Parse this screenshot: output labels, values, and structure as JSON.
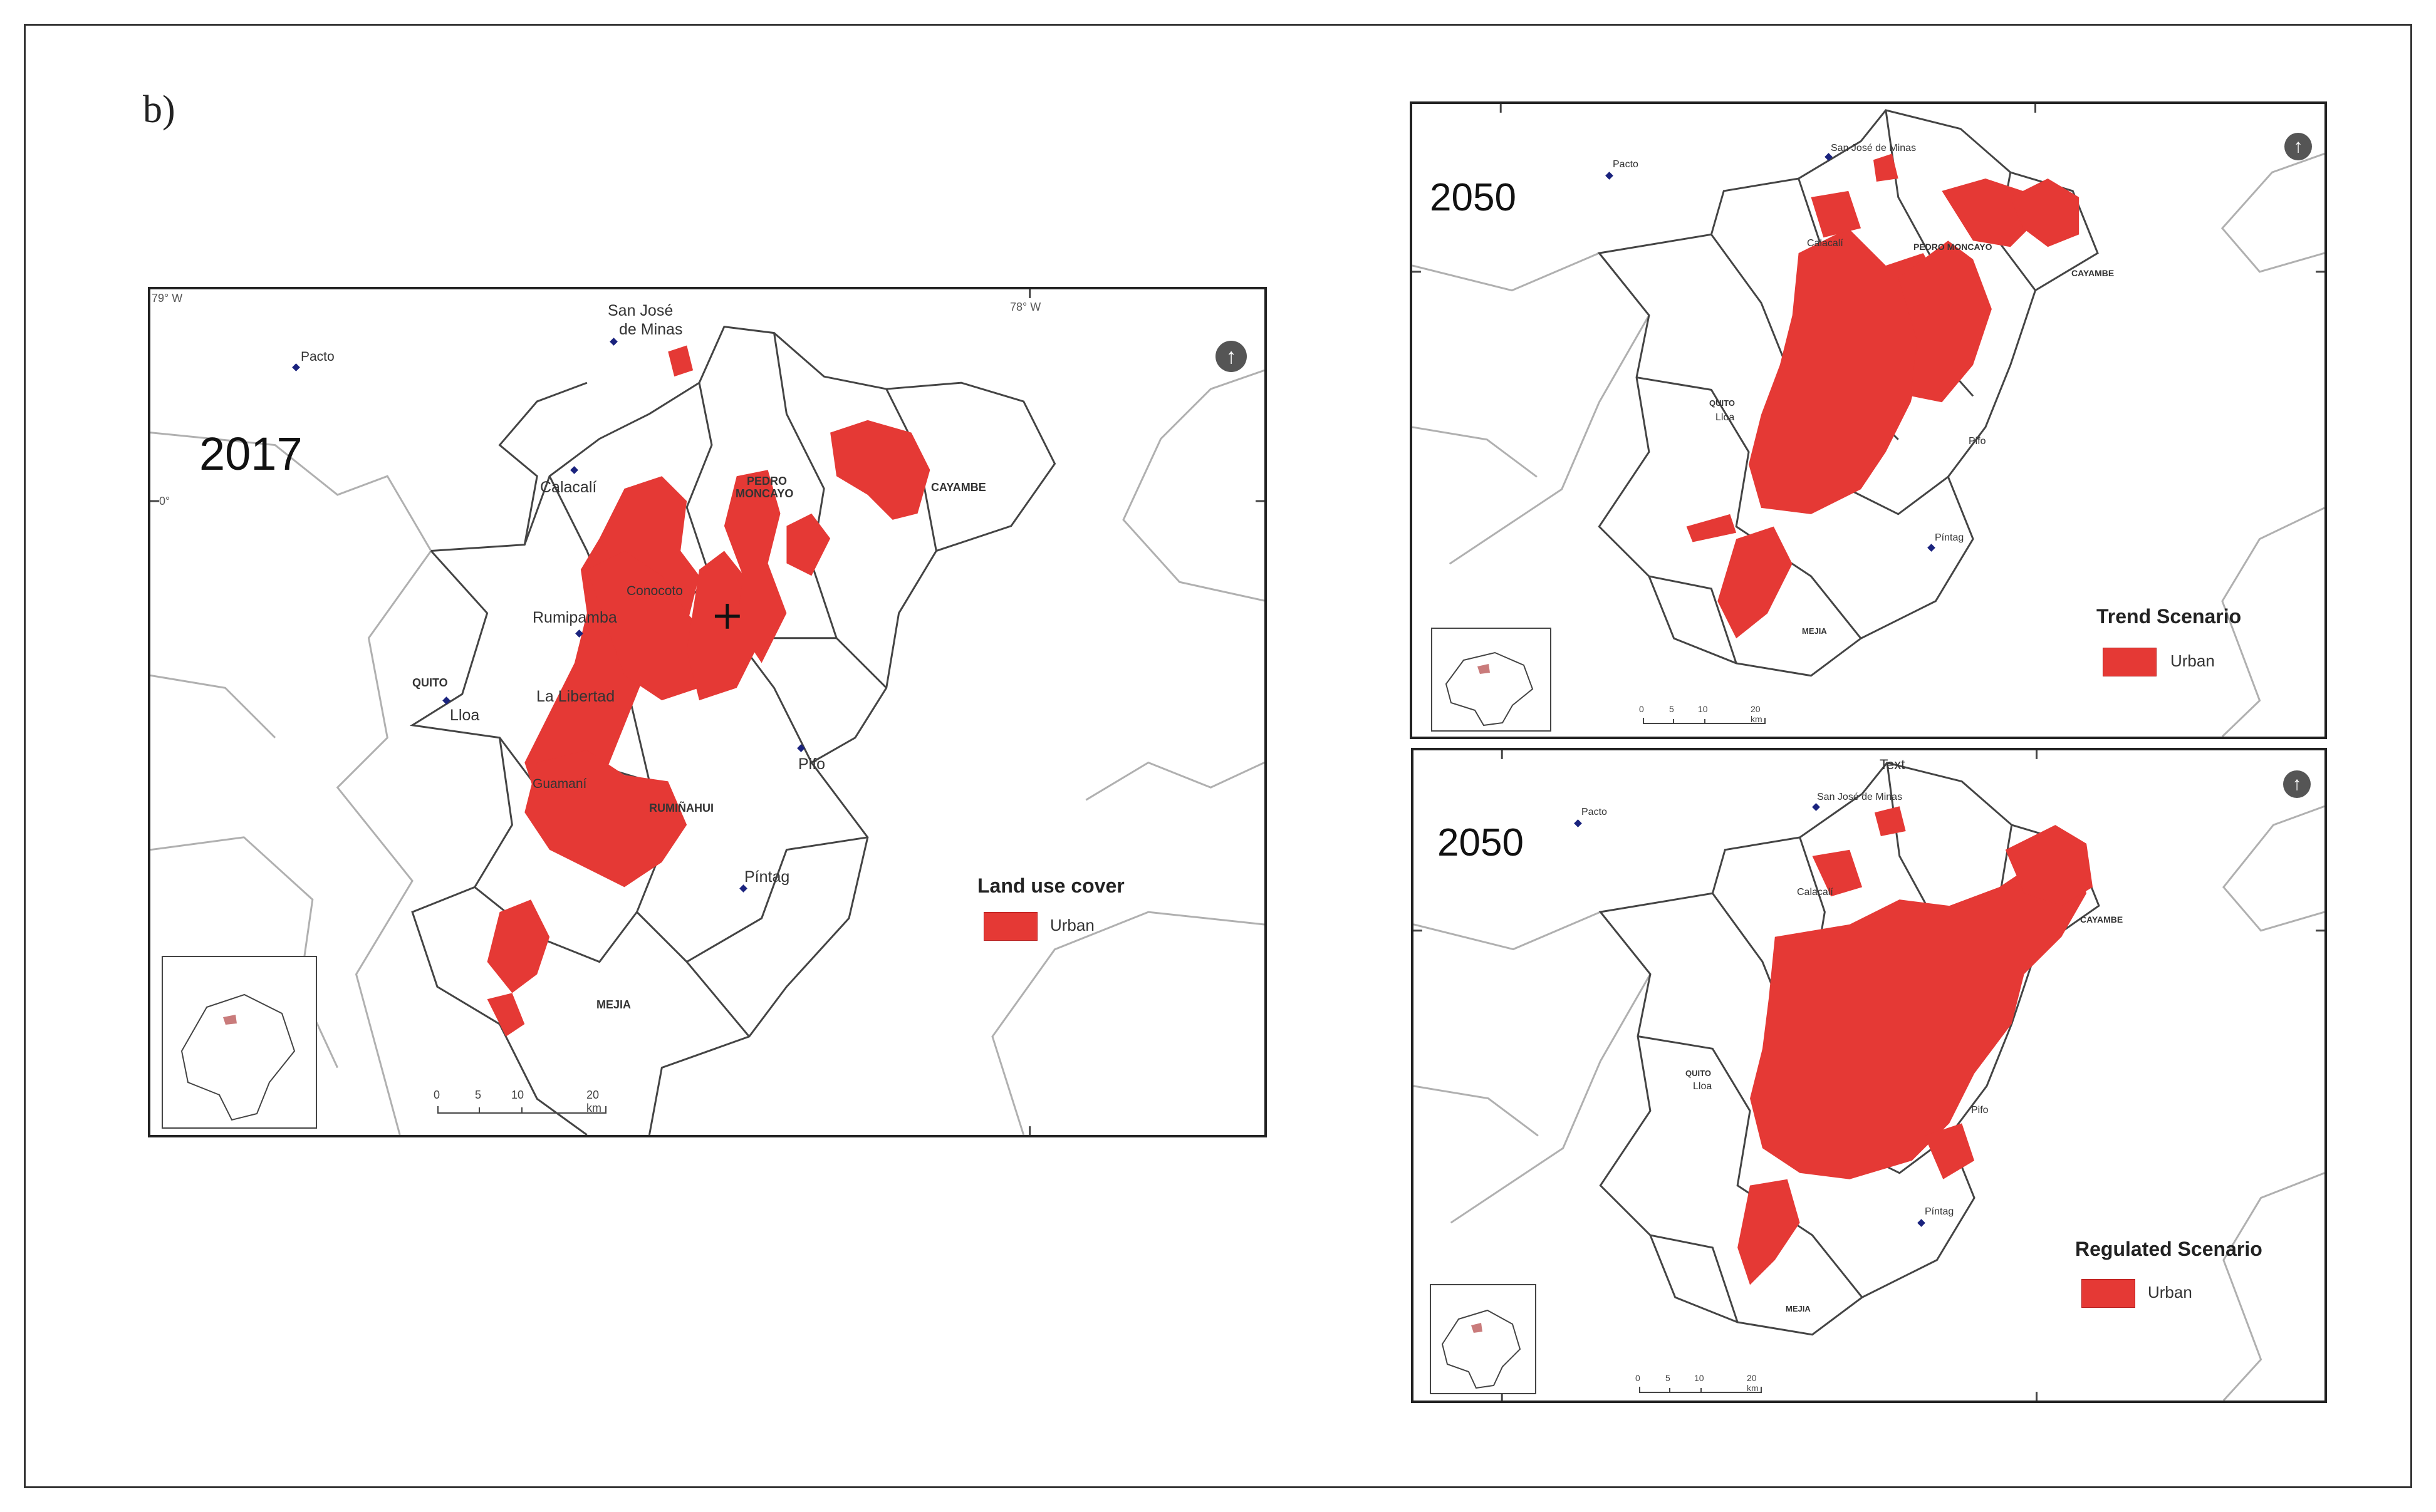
{
  "panel_label": "b)",
  "colors": {
    "urban": "#e53935",
    "boundary": "#555555",
    "frame": "#222222"
  },
  "maps": {
    "m2017": {
      "year": "2017",
      "legend_title": "Land use cover",
      "legend_item": "Urban",
      "coords": {
        "top_left": "79° W",
        "top_mid": "78° W",
        "left_mid": "0°"
      },
      "scale": {
        "labels": [
          "0",
          "5",
          "10",
          "20 km"
        ]
      },
      "places": {
        "pacto": "Pacto",
        "san_jose": "San José",
        "de_minas": "de Minas",
        "calacali": "Calacalí",
        "pedro": "PEDRO",
        "moncayo": "MONCAYO",
        "cayambe": "CAYAMBE",
        "rumipamba": "Rumipamba",
        "quito": "QUITO",
        "lloa": "Lloa",
        "la_libertad": "La Libertad",
        "pifo": "Pifo",
        "pintag": "Píntag",
        "mejia": "MEJIA",
        "conocoto": "Conocoto",
        "guamani": "Guamaní",
        "rumiñahui": "RUMIÑAHUI"
      }
    },
    "trend": {
      "year": "2050",
      "legend_title": "Trend Scenario",
      "legend_item": "Urban",
      "scale": {
        "labels": [
          "0",
          "5",
          "10",
          "20 km"
        ]
      },
      "places": {
        "pacto": "Pacto",
        "san_jose": "San José de Minas",
        "calacali": "Calacalí",
        "pedro": "PEDRO MONCAYO",
        "cayambe": "CAYAMBE",
        "quito": "QUITO",
        "lloa": "Lloa",
        "pifo": "Pifo",
        "pintag": "Píntag",
        "mejia": "MEJIA"
      }
    },
    "regulated": {
      "year": "2050",
      "legend_title": "Regulated Scenario",
      "legend_item": "Urban",
      "top_text": "Text",
      "scale": {
        "labels": [
          "0",
          "5",
          "10",
          "20 km"
        ]
      },
      "places": {
        "pacto": "Pacto",
        "san_jose": "San José de Minas",
        "calacali": "Calacalí",
        "cayambe": "CAYAMBE",
        "quito": "QUITO",
        "lloa": "Lloa",
        "pifo": "Pifo",
        "pintag": "Píntag",
        "mejia": "MEJIA"
      }
    }
  }
}
